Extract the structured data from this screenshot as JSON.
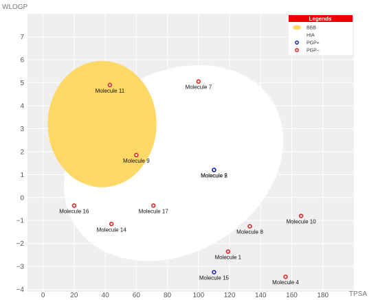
{
  "chart_data": {
    "type": "scatter",
    "title": "",
    "xlabel": "TPSA",
    "ylabel": "WLOGP",
    "xlim": [
      -10,
      200
    ],
    "ylim": [
      -4.1,
      8
    ],
    "x_ticks": [
      0,
      20,
      40,
      60,
      80,
      100,
      120,
      140,
      160,
      180
    ],
    "y_ticks": [
      -4,
      -3,
      -2,
      -1,
      0,
      1,
      2,
      3,
      4,
      5,
      6,
      7
    ],
    "grid": true,
    "legend_position": "top-right",
    "regions": [
      {
        "name": "BBB",
        "color": "#FFD866",
        "center": [
          38,
          3.2
        ],
        "semi_axes": [
          35,
          2.75
        ]
      },
      {
        "name": "HIA",
        "color": "#FFFFFF",
        "center": [
          84,
          1.5
        ],
        "semi_axes": [
          75,
          3.9
        ],
        "rotation_deg": -32
      }
    ],
    "series": [
      {
        "name": "PGP+",
        "color": "#1d22c9",
        "points": [
          {
            "label": "Molecule 2",
            "x": 110,
            "y": 1.2
          },
          {
            "label": "Molecule 5",
            "x": 110,
            "y": 1.2
          },
          {
            "label": "Molecule 15",
            "x": 110,
            "y": -3.25
          }
        ]
      },
      {
        "name": "PGP−",
        "color": "#dd2121",
        "points": [
          {
            "label": "Molecule 11",
            "x": 43,
            "y": 4.9
          },
          {
            "label": "Molecule 7",
            "x": 100,
            "y": 5.05
          },
          {
            "label": "Molecule 9",
            "x": 60,
            "y": 1.85
          },
          {
            "label": "Molecule 16",
            "x": 20,
            "y": -0.35
          },
          {
            "label": "Molecule 17",
            "x": 71,
            "y": -0.35
          },
          {
            "label": "Molecule 14",
            "x": 44,
            "y": -1.15
          },
          {
            "label": "Molecule 8",
            "x": 133,
            "y": -1.25
          },
          {
            "label": "Molecule 10",
            "x": 166,
            "y": -0.8
          },
          {
            "label": "Molecule 1",
            "x": 119,
            "y": -2.35
          },
          {
            "label": "Molecule 4",
            "x": 156,
            "y": -3.45
          }
        ]
      }
    ]
  },
  "legend": {
    "title": "Legends",
    "items": [
      "BBB",
      "HIA",
      "PGP+",
      "PGP−"
    ]
  },
  "colors": {
    "plot_background": "#EFEFEF",
    "grid": "#FFFFFF",
    "legend_header": "#EE0000"
  }
}
